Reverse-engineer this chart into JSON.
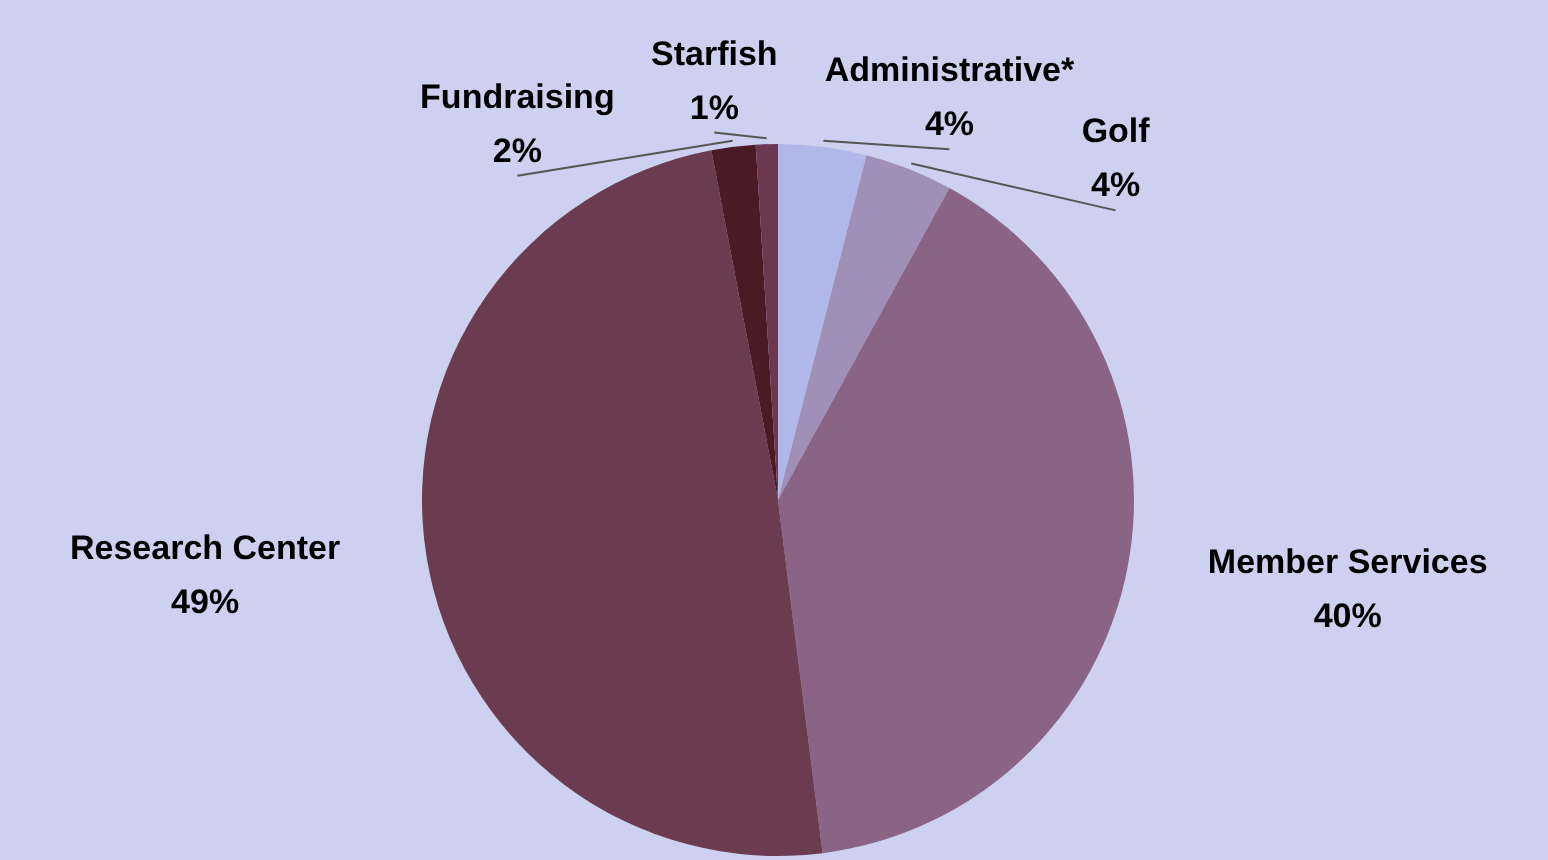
{
  "chart_data": {
    "type": "pie",
    "categories": [
      "Administrative*",
      "Golf",
      "Member Services",
      "Research Center",
      "Fundraising",
      "Starfish"
    ],
    "values": [
      4,
      4,
      40,
      49,
      2,
      1
    ],
    "value_labels": [
      "4%",
      "4%",
      "40%",
      "49%",
      "2%",
      "1%"
    ],
    "colors": [
      "#b0b8e8",
      "#a090b8",
      "#8a6485",
      "#6b3c50",
      "#4a1a25",
      "#6b3850"
    ],
    "legend": false
  }
}
